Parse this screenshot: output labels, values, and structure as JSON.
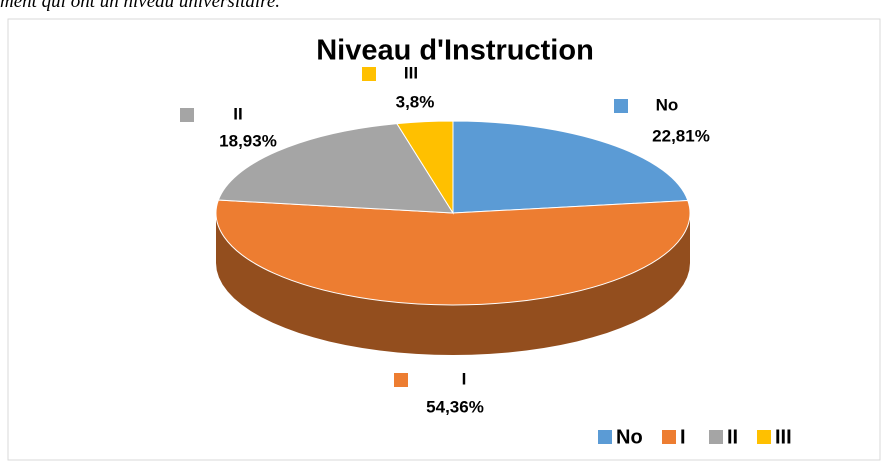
{
  "page_text": "ment qui ont un niveau universitaire.",
  "chart_data": {
    "type": "pie3d",
    "title": "Niveau d'Instruction",
    "categories": [
      "No",
      "I",
      "II",
      "III"
    ],
    "values": [
      22.81,
      54.36,
      18.93,
      3.8
    ],
    "value_labels": [
      "22,81%",
      "54,36%",
      "18,93%",
      "3,8%"
    ],
    "colors": [
      "#5b9bd5",
      "#ed7d31",
      "#a5a5a5",
      "#ffc000"
    ],
    "legend": "bottom-right"
  }
}
